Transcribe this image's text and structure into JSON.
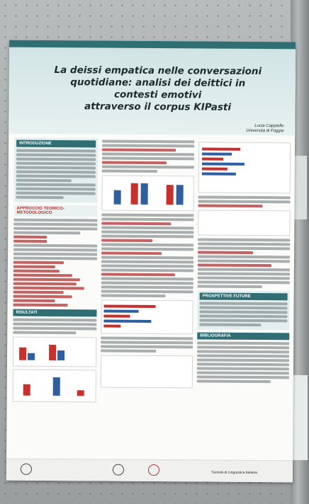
{
  "poster": {
    "title_lines": [
      "La deissi empatica nelle conversazioni",
      "quotidiane: analisi dei deittici in contesti emotivi",
      "attraverso il corpus KIPasti"
    ],
    "author": "Lucia Cappiello",
    "affiliation": "Università di Foggia",
    "sections": {
      "intro": "INTRODUZIONE",
      "approach": "APPROCCIO TEORICO-METODOLOGICO",
      "results": "RISULTATI",
      "perspectives": "PROSPETTIVE FUTURE",
      "bibliography": "BIBLIOGRAFIA"
    },
    "footer_org": "Società di Linguistica Italiana"
  }
}
